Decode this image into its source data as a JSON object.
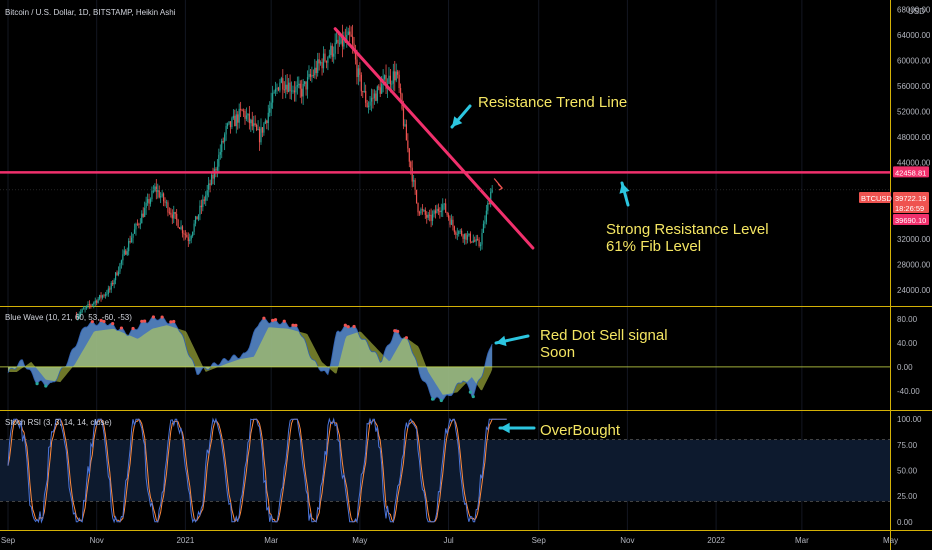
{
  "chart_data": [
    {
      "type": "candlestick",
      "title": "Bitcoin / U.S. Dollar, 1D, BITSTAMP, Heikin Ashi",
      "currency": "USD",
      "y_ticks": [
        "68000.00",
        "64000.00",
        "60000.00",
        "56000.00",
        "52000.00",
        "48000.00",
        "44000.00",
        "32000.00",
        "28000.00",
        "24000.00"
      ],
      "ylim": [
        21500,
        69500
      ],
      "colors": {
        "up": "#26a69a",
        "down": "#ef5350"
      },
      "price_path": [
        {
          "t": 0.0,
          "v": 20000
        },
        {
          "t": 0.08,
          "v": 24000
        },
        {
          "t": 0.13,
          "v": 32000
        },
        {
          "t": 0.19,
          "v": 40000
        },
        {
          "t": 0.24,
          "v": 35000
        },
        {
          "t": 0.27,
          "v": 32000
        },
        {
          "t": 0.33,
          "v": 42000
        },
        {
          "t": 0.36,
          "v": 49000
        },
        {
          "t": 0.4,
          "v": 52000
        },
        {
          "t": 0.44,
          "v": 48000
        },
        {
          "t": 0.49,
          "v": 57000
        },
        {
          "t": 0.54,
          "v": 55000
        },
        {
          "t": 0.58,
          "v": 59000
        },
        {
          "t": 0.62,
          "v": 62000
        },
        {
          "t": 0.66,
          "v": 63500
        },
        {
          "t": 0.68,
          "v": 57000
        },
        {
          "t": 0.7,
          "v": 53000
        },
        {
          "t": 0.74,
          "v": 56500
        },
        {
          "t": 0.77,
          "v": 58000
        },
        {
          "t": 0.79,
          "v": 49000
        },
        {
          "t": 0.82,
          "v": 37000
        },
        {
          "t": 0.85,
          "v": 35000
        },
        {
          "t": 0.88,
          "v": 37500
        },
        {
          "t": 0.91,
          "v": 33500
        },
        {
          "t": 0.95,
          "v": 32000
        },
        {
          "t": 0.97,
          "v": 31000
        },
        {
          "t": 1.0,
          "v": 40500
        }
      ],
      "annotations": [
        {
          "label": "Resistance Trend Line"
        },
        {
          "label": "Strong Resistance Level"
        },
        {
          "label": "61% Fib Level"
        }
      ],
      "horizontal_line": {
        "value": 42458.81,
        "color": "#f0306c"
      },
      "trend_line": {
        "from": {
          "date": "2021-04-14",
          "value": 65000
        },
        "to": {
          "date": "2021-08-28",
          "value": 30600
        },
        "color": "#f0306c"
      },
      "price_tags": [
        {
          "label": "42458.81",
          "value": 42458.81,
          "color": "#f0306c"
        },
        {
          "label": "BTCUSD",
          "value": 39722.19,
          "color": "#ef5350"
        },
        {
          "label": "39722.19",
          "value": 39722.19,
          "color": "#ef5350"
        },
        {
          "label": "18:26:59",
          "value": 38860,
          "color": "#ef5350"
        },
        {
          "label": "39690.10",
          "value": 37780,
          "color": "#f0306c"
        }
      ]
    },
    {
      "type": "area",
      "title": "Blue Wave (10, 21, 60, 53, -60, -53)",
      "y_ticks": [
        "80.00",
        "40.00",
        "0.00",
        "-40.00"
      ],
      "ylim": [
        -72,
        100
      ],
      "colors": {
        "wave": "#5b8fd4",
        "signal": "#c8d94a",
        "sell_dot": "#ef5350",
        "buy_dot": "#26a69a"
      },
      "annotations": [
        {
          "label": "Red Dot Sell signal"
        },
        {
          "label": "Soon"
        }
      ]
    },
    {
      "type": "line",
      "title": "Stoch RSI (3, 3, 14, 14, close)",
      "y_ticks": [
        "100.00",
        "75.00",
        "50.00",
        "25.00",
        "0.00"
      ],
      "ylim": [
        -8,
        108
      ],
      "bands": [
        20,
        80
      ],
      "colors": {
        "k": "#4a74d9",
        "d": "#ff8a3d",
        "band": "#0d1a2e"
      },
      "annotations": [
        {
          "label": "OverBought"
        }
      ]
    }
  ],
  "x_axis": {
    "ticks": [
      {
        "label": "Sep",
        "date": "2020-09-01"
      },
      {
        "label": "Nov",
        "date": "2020-11-01"
      },
      {
        "label": "2021",
        "date": "2021-01-01"
      },
      {
        "label": "Mar",
        "date": "2021-03-01"
      },
      {
        "label": "May",
        "date": "2021-05-01"
      },
      {
        "label": "Jul",
        "date": "2021-07-01"
      },
      {
        "label": "Sep",
        "date": "2021-09-01"
      },
      {
        "label": "Nov",
        "date": "2021-11-01"
      },
      {
        "label": "2022",
        "date": "2022-01-01"
      },
      {
        "label": "Mar",
        "date": "2022-03-01"
      },
      {
        "label": "May",
        "date": "2022-05-01"
      }
    ]
  },
  "colors": {
    "background": "#000000",
    "divider": "#d4b106",
    "annotation_text": "#f5e663",
    "arrow": "#2cc6e0"
  }
}
